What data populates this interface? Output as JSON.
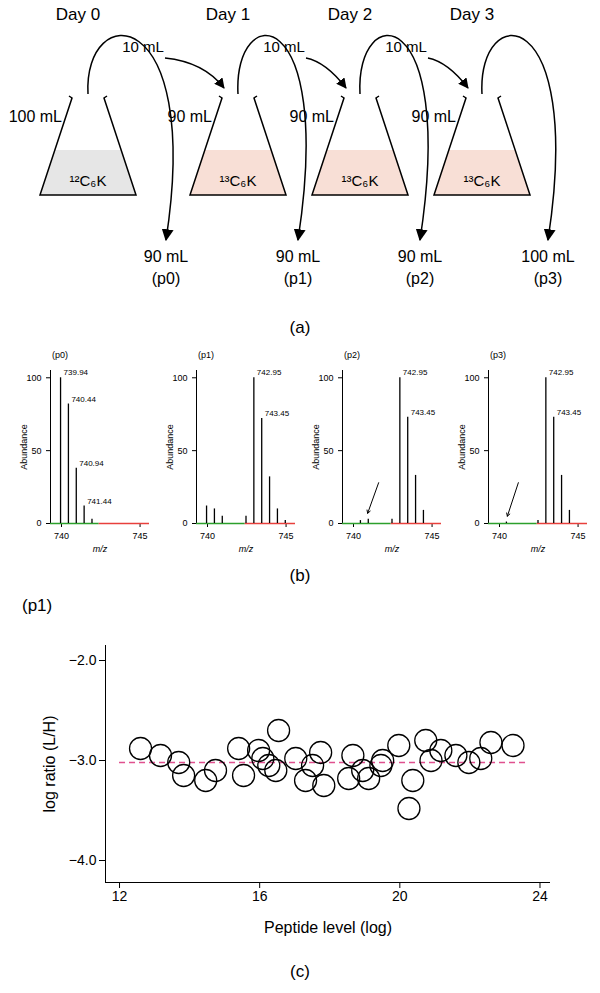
{
  "diagram": {
    "days": [
      "Day 0",
      "Day 1",
      "Day 2",
      "Day 3"
    ],
    "transfers": [
      "10 mL",
      "10 mL",
      "10 mL"
    ],
    "flasks": [
      {
        "volume": "100 mL",
        "medium": "¹²C₆K",
        "color": "#e6e6e6"
      },
      {
        "volume": "90 mL",
        "medium": "¹³C₆K",
        "color": "#f8dfd6"
      },
      {
        "volume": "90 mL",
        "medium": "¹³C₆K",
        "color": "#f8dfd6"
      },
      {
        "volume": "90 mL",
        "medium": "¹³C₆K",
        "color": "#f8dfd6"
      }
    ],
    "outputs": [
      {
        "volume": "90 mL",
        "label": "(p0)"
      },
      {
        "volume": "90 mL",
        "label": "(p1)"
      },
      {
        "volume": "90 mL",
        "label": "(p2)"
      },
      {
        "volume": "100 mL",
        "label": "(p3)"
      }
    ]
  },
  "panel_labels": [
    "(a)",
    "(b)",
    "(c)"
  ],
  "chart_data": [
    {
      "type": "spectrum",
      "title": "(p0)",
      "x_label": "m/z",
      "y_label": "Abundance",
      "x": [
        739.94,
        740.44,
        740.94,
        741.44,
        741.94
      ],
      "values": [
        100,
        82,
        38,
        12,
        3
      ],
      "color": "#000000",
      "xlim": [
        739.3,
        745.6
      ],
      "xticks": [
        740,
        745
      ],
      "ylim": [
        0,
        105
      ],
      "yticks": [
        0,
        50,
        100
      ],
      "baseline": [
        {
          "x": [
            739.3,
            742.4
          ],
          "color": "#2ca02c"
        },
        {
          "x": [
            742.4,
            745.6
          ],
          "color": "#e8403c"
        }
      ],
      "annotations": [
        {
          "type": "text",
          "text": "739.94",
          "x": 739.94,
          "y": 100
        },
        {
          "type": "text",
          "text": "740.44",
          "x": 740.44,
          "y": 82
        },
        {
          "type": "text",
          "text": "740.94",
          "x": 740.94,
          "y": 38
        },
        {
          "type": "text",
          "text": "741.44",
          "x": 741.44,
          "y": 12
        }
      ]
    },
    {
      "type": "spectrum",
      "title": "(p1)",
      "x_label": "m/z",
      "y_label": "Abundance",
      "x": [
        739.94,
        740.44,
        740.94,
        742.45,
        742.95,
        743.45,
        743.95,
        744.45,
        744.95
      ],
      "values": [
        12,
        10,
        5,
        5,
        100,
        72,
        32,
        10,
        2
      ],
      "color": "#000000",
      "xlim": [
        739.3,
        745.6
      ],
      "xticks": [
        740,
        745
      ],
      "ylim": [
        0,
        105
      ],
      "yticks": [
        0,
        50,
        100
      ],
      "baseline": [
        {
          "x": [
            739.3,
            742.4
          ],
          "color": "#2ca02c"
        },
        {
          "x": [
            742.4,
            745.6
          ],
          "color": "#e8403c"
        }
      ],
      "annotations": [
        {
          "type": "text",
          "text": "742.95",
          "x": 742.95,
          "y": 100
        },
        {
          "type": "text",
          "text": "743.45",
          "x": 743.45,
          "y": 72
        }
      ]
    },
    {
      "type": "spectrum",
      "title": "(p2)",
      "x_label": "m/z",
      "y_label": "Abundance",
      "x": [
        740.44,
        740.94,
        742.45,
        742.95,
        743.45,
        743.95,
        744.45
      ],
      "values": [
        2,
        3,
        3,
        100,
        73,
        33,
        9
      ],
      "color": "#000000",
      "xlim": [
        739.3,
        745.6
      ],
      "xticks": [
        740,
        745
      ],
      "ylim": [
        0,
        105
      ],
      "yticks": [
        0,
        50,
        100
      ],
      "baseline": [
        {
          "x": [
            739.3,
            742.4
          ],
          "color": "#2ca02c"
        },
        {
          "x": [
            742.4,
            745.6
          ],
          "color": "#e8403c"
        }
      ],
      "annotations": [
        {
          "type": "text",
          "text": "742.95",
          "x": 742.95,
          "y": 100
        },
        {
          "type": "text",
          "text": "743.45",
          "x": 743.45,
          "y": 73
        },
        {
          "type": "arrow",
          "x1": 741.6,
          "y1": 28,
          "x2": 740.9,
          "y2": 7
        }
      ]
    },
    {
      "type": "spectrum",
      "title": "(p3)",
      "x_label": "m/z",
      "y_label": "Abundance",
      "x": [
        740.44,
        742.45,
        742.95,
        743.45,
        743.95,
        744.45
      ],
      "values": [
        1,
        2,
        100,
        73,
        33,
        9
      ],
      "color": "#000000",
      "xlim": [
        739.3,
        745.6
      ],
      "xticks": [
        740,
        745
      ],
      "ylim": [
        0,
        105
      ],
      "yticks": [
        0,
        50,
        100
      ],
      "baseline": [
        {
          "x": [
            739.3,
            742.4
          ],
          "color": "#2ca02c"
        },
        {
          "x": [
            742.4,
            745.6
          ],
          "color": "#e8403c"
        }
      ],
      "annotations": [
        {
          "type": "text",
          "text": "742.95",
          "x": 742.95,
          "y": 100
        },
        {
          "type": "text",
          "text": "743.45",
          "x": 743.45,
          "y": 73
        },
        {
          "type": "arrow",
          "x1": 741.2,
          "y1": 28,
          "x2": 740.5,
          "y2": 5
        }
      ]
    },
    {
      "type": "scatter",
      "title": "(p1)",
      "x_label": "Peptide level (log)",
      "y_label": "log ratio (L/H)",
      "x": [
        12.6,
        13.17,
        13.69,
        13.83,
        14.46,
        14.74,
        15.4,
        15.54,
        15.97,
        16.09,
        16.26,
        16.46,
        16.54,
        17.03,
        17.31,
        17.51,
        17.74,
        17.83,
        18.54,
        18.66,
        18.94,
        19.11,
        19.46,
        19.51,
        19.97,
        20.26,
        20.37,
        20.74,
        20.89,
        21.17,
        21.6,
        21.97,
        22.31,
        22.6,
        23.23
      ],
      "values": [
        -2.88,
        -2.95,
        -3.02,
        -3.15,
        -3.2,
        -3.1,
        -2.88,
        -3.15,
        -2.9,
        -2.98,
        -3.05,
        -3.1,
        -2.7,
        -2.98,
        -3.2,
        -3.05,
        -2.92,
        -3.25,
        -3.18,
        -2.95,
        -3.1,
        -3.18,
        -3.05,
        -3.0,
        -2.85,
        -3.48,
        -3.2,
        -2.8,
        -3.0,
        -2.9,
        -2.95,
        -3.02,
        -2.98,
        -2.82,
        -2.85
      ],
      "color": "#000000",
      "marker": "open_circle",
      "xlim": [
        11.6,
        24.3
      ],
      "xticks": [
        12,
        16,
        20,
        24
      ],
      "ylim": [
        -4.22,
        -1.85
      ],
      "yticks": [
        -2,
        -3,
        -4
      ],
      "reference_line": {
        "y": -3.02,
        "x": [
          12,
          23.7
        ],
        "color": "#e0508f",
        "line_style": "dashed"
      }
    }
  ]
}
